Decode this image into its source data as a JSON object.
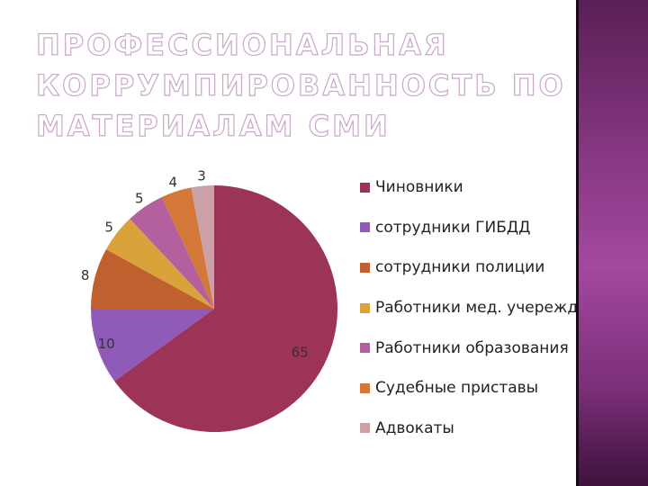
{
  "slide": {
    "title_lines": [
      "ПРОФЕССИОНАЛЬНАЯ",
      "КОРРУМПИРОВАННОСТЬ ПО",
      "МАТЕРИАЛАМ СМИ"
    ]
  },
  "colors": {
    "accent_band": "#8a3a86"
  },
  "chart_data": {
    "type": "pie",
    "categories": [
      "Чиновники",
      "сотрудники ГИБДД",
      "сотрудники полиции",
      "Работники мед. учереждений",
      "Работники образования",
      "Судебные приставы",
      "Адвокаты"
    ],
    "values": [
      65,
      10,
      8,
      5,
      5,
      4,
      3
    ],
    "colors": [
      "#9c3358",
      "#8f5ab8",
      "#c0602e",
      "#d9a23a",
      "#b5609e",
      "#d4783a",
      "#c9a1a6"
    ],
    "data_labels": [
      "65",
      "10",
      "8",
      "5",
      "5",
      "4",
      "3"
    ],
    "legend_position": "right",
    "start_angle": "top",
    "direction": "clockwise"
  }
}
